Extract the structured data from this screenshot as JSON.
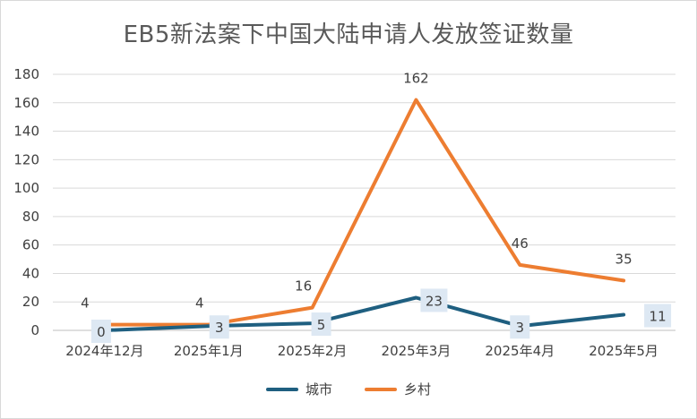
{
  "chart_data": {
    "type": "line",
    "title": "EB5新法案下中国大陆申请人发放签证数量",
    "categories": [
      "2024年12月",
      "2025年1月",
      "2025年2月",
      "2025年3月",
      "2025年4月",
      "2025年5月"
    ],
    "series": [
      {
        "name": "城市",
        "values": [
          0,
          3,
          5,
          23,
          3,
          11
        ],
        "color": "#1f5f80"
      },
      {
        "name": "乡村",
        "values": [
          4,
          4,
          16,
          162,
          46,
          35
        ],
        "color": "#ed7d31"
      }
    ],
    "ylim": [
      0,
      180
    ],
    "yticks": [
      0,
      20,
      40,
      60,
      80,
      100,
      120,
      140,
      160,
      180
    ],
    "grid": true,
    "legend": "bottom"
  }
}
